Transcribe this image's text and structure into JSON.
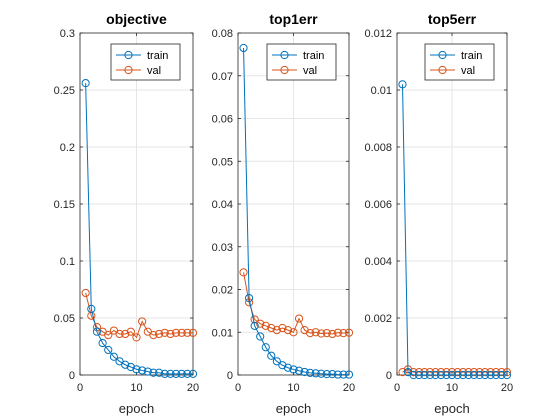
{
  "colors": {
    "train": "#0072BD",
    "val": "#D95319",
    "grid": "#E6E6E6",
    "axis": "#262626"
  },
  "chart_data": [
    {
      "type": "line",
      "title": "objective",
      "xlabel": "epoch",
      "ylabel": "",
      "xlim": [
        0,
        20
      ],
      "ylim": [
        0,
        0.3
      ],
      "grid": true,
      "legend_position": "top-right",
      "x_ticks": [
        0,
        10,
        20
      ],
      "y_ticks": [
        0,
        0.05,
        0.1,
        0.15,
        0.2,
        0.25,
        0.3
      ],
      "x": [
        1,
        2,
        3,
        4,
        5,
        6,
        7,
        8,
        9,
        10,
        11,
        12,
        13,
        14,
        15,
        16,
        17,
        18,
        19,
        20
      ],
      "series": [
        {
          "name": "train",
          "values": [
            0.256,
            0.058,
            0.038,
            0.028,
            0.022,
            0.016,
            0.012,
            0.009,
            0.007,
            0.005,
            0.004,
            0.003,
            0.002,
            0.002,
            0.001,
            0.001,
            0.001,
            0.001,
            0.001,
            0.001
          ]
        },
        {
          "name": "val",
          "values": [
            0.072,
            0.052,
            0.042,
            0.038,
            0.035,
            0.039,
            0.036,
            0.036,
            0.038,
            0.033,
            0.047,
            0.038,
            0.035,
            0.036,
            0.037,
            0.036,
            0.037,
            0.037,
            0.037,
            0.037
          ]
        }
      ]
    },
    {
      "type": "line",
      "title": "top1err",
      "xlabel": "epoch",
      "ylabel": "",
      "xlim": [
        0,
        20
      ],
      "ylim": [
        0,
        0.08
      ],
      "grid": true,
      "legend_position": "top-right",
      "x_ticks": [
        0,
        10,
        20
      ],
      "y_ticks": [
        0,
        0.01,
        0.02,
        0.03,
        0.04,
        0.05,
        0.06,
        0.07,
        0.08
      ],
      "x": [
        1,
        2,
        3,
        4,
        5,
        6,
        7,
        8,
        9,
        10,
        11,
        12,
        13,
        14,
        15,
        16,
        17,
        18,
        19,
        20
      ],
      "series": [
        {
          "name": "train",
          "values": [
            0.0765,
            0.018,
            0.0115,
            0.009,
            0.0065,
            0.0045,
            0.0032,
            0.0023,
            0.0017,
            0.0013,
            0.001,
            0.0007,
            0.0005,
            0.0004,
            0.0003,
            0.0002,
            0.0002,
            0.0001,
            0.0001,
            0.0001
          ]
        },
        {
          "name": "val",
          "values": [
            0.024,
            0.017,
            0.013,
            0.012,
            0.0115,
            0.011,
            0.0105,
            0.011,
            0.0105,
            0.01,
            0.0132,
            0.0105,
            0.0098,
            0.01,
            0.0097,
            0.0098,
            0.0096,
            0.0099,
            0.0098,
            0.0099
          ]
        }
      ]
    },
    {
      "type": "line",
      "title": "top5err",
      "xlabel": "epoch",
      "ylabel": "",
      "xlim": [
        0,
        20
      ],
      "ylim": [
        0,
        0.012
      ],
      "grid": true,
      "legend_position": "top-right",
      "x_ticks": [
        0,
        10,
        20
      ],
      "y_ticks": [
        0,
        0.002,
        0.004,
        0.006,
        0.008,
        0.01,
        0.012
      ],
      "x": [
        1,
        2,
        3,
        4,
        5,
        6,
        7,
        8,
        9,
        10,
        11,
        12,
        13,
        14,
        15,
        16,
        17,
        18,
        19,
        20
      ],
      "series": [
        {
          "name": "train",
          "values": [
            0.0102,
            0.0001,
            0,
            0,
            0,
            0,
            0,
            0,
            0,
            0,
            0,
            0,
            0,
            0,
            0,
            0,
            0,
            0,
            0,
            0
          ]
        },
        {
          "name": "val",
          "values": [
            0.0001,
            0.0002,
            0.0001,
            0.0001,
            0.0001,
            0.0001,
            0.0001,
            0.0001,
            0.0001,
            0.0001,
            0.0001,
            0.0001,
            0.0001,
            0.0001,
            0.0001,
            0.0001,
            0.0001,
            0.0001,
            0.0001,
            0.0001
          ]
        }
      ]
    }
  ]
}
